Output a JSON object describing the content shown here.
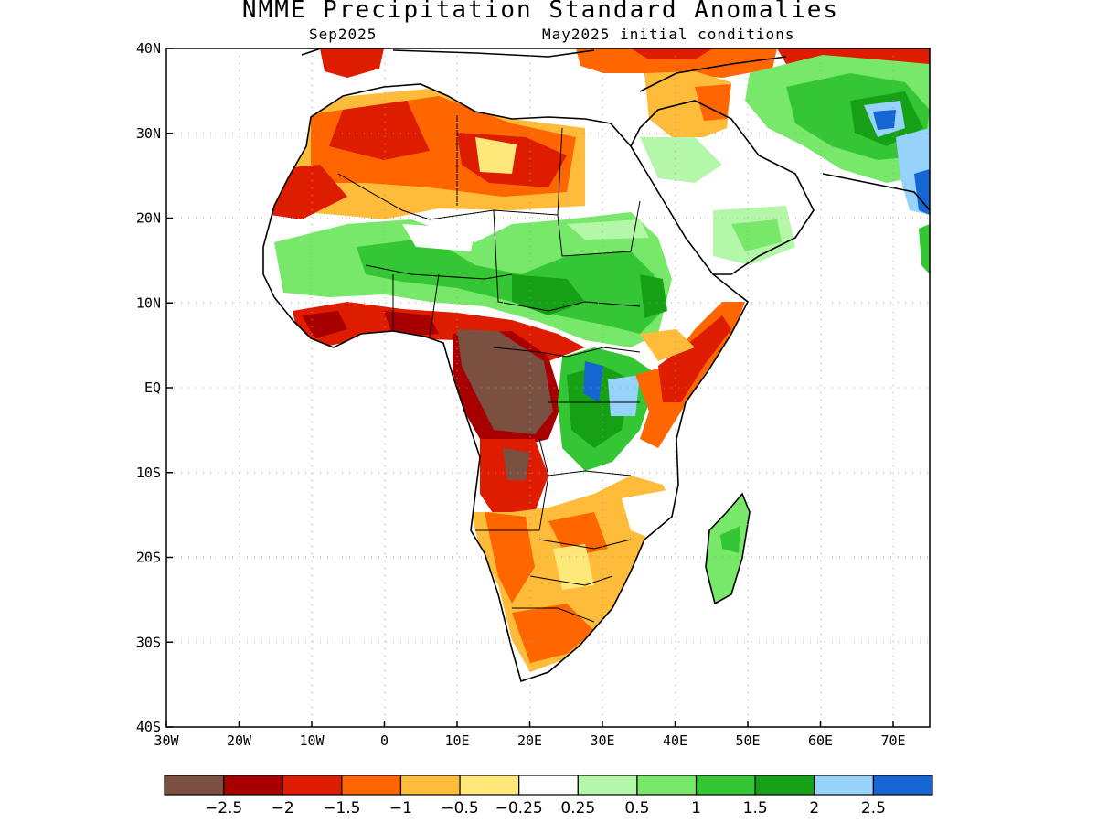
{
  "title": "NMME Precipitation Standard Anomalies",
  "valid_month": "Sep2025",
  "init_conditions": "May2025 initial conditions",
  "lat_ticks": [
    "40N",
    "30N",
    "20N",
    "10N",
    "EQ",
    "10S",
    "20S",
    "30S",
    "40S"
  ],
  "lon_ticks": [
    "30W",
    "20W",
    "10W",
    "0",
    "10E",
    "20E",
    "30E",
    "40E",
    "50E",
    "60E",
    "70E"
  ],
  "colorbar": {
    "colors": [
      "#7a5040",
      "#a80000",
      "#dd1c00",
      "#ff6600",
      "#ffbb3a",
      "#ffe87a",
      "#ffffff",
      "#b4f7a8",
      "#78e86a",
      "#34c634",
      "#16a016",
      "#96d2fa",
      "#1565d2"
    ],
    "labels": [
      "−2.5",
      "−2",
      "−1.5",
      "−1",
      "−0.5",
      "−0.25",
      "0.25",
      "0.5",
      "1",
      "1.5",
      "2",
      "2.5"
    ]
  },
  "map_colors": {
    "brown": "#7a5040",
    "darkred": "#a80000",
    "red": "#dd1c00",
    "orange": "#ff6600",
    "lightorange": "#ffbb3a",
    "yellow": "#ffe87a",
    "lightgreen": "#b4f7a8",
    "green": "#78e86a",
    "midgreen": "#34c634",
    "darkgreen": "#16a016",
    "lightblue": "#96d2fa",
    "blue": "#1565d2"
  }
}
